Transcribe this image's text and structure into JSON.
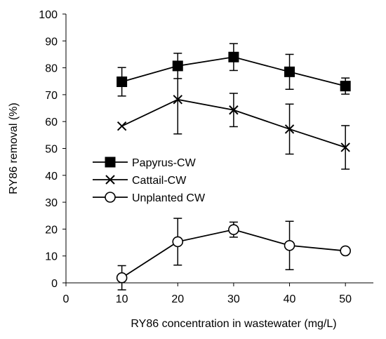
{
  "chart_data": {
    "type": "line",
    "title": "",
    "xlabel": "RY86 concentration in wastewater (mg/L)",
    "ylabel": "RY86 removal (%)",
    "xlim": [
      0,
      55
    ],
    "ylim": [
      0,
      100
    ],
    "xticks": [
      0,
      10,
      20,
      30,
      40,
      50
    ],
    "yticks": [
      0,
      10,
      20,
      30,
      40,
      50,
      60,
      70,
      80,
      90,
      100
    ],
    "grid": false,
    "legend_position": "middle-left",
    "x": [
      10,
      20,
      30,
      40,
      50
    ],
    "series": [
      {
        "name": "Papyrus-CW",
        "marker": "filled-square",
        "values": [
          74.8,
          80.7,
          84.0,
          78.5,
          73.2
        ],
        "error": [
          5.3,
          4.7,
          5.0,
          6.5,
          3.0
        ]
      },
      {
        "name": "Cattail-CW",
        "marker": "x",
        "values": [
          58.3,
          68.2,
          64.3,
          57.2,
          50.4
        ],
        "error": [
          0,
          12.8,
          6.2,
          9.3,
          8.1
        ]
      },
      {
        "name": "Unplanted CW",
        "marker": "open-circle",
        "values": [
          1.9,
          15.3,
          19.8,
          13.9,
          11.9
        ],
        "error": [
          4.5,
          8.7,
          2.8,
          9.0,
          0
        ]
      }
    ]
  }
}
